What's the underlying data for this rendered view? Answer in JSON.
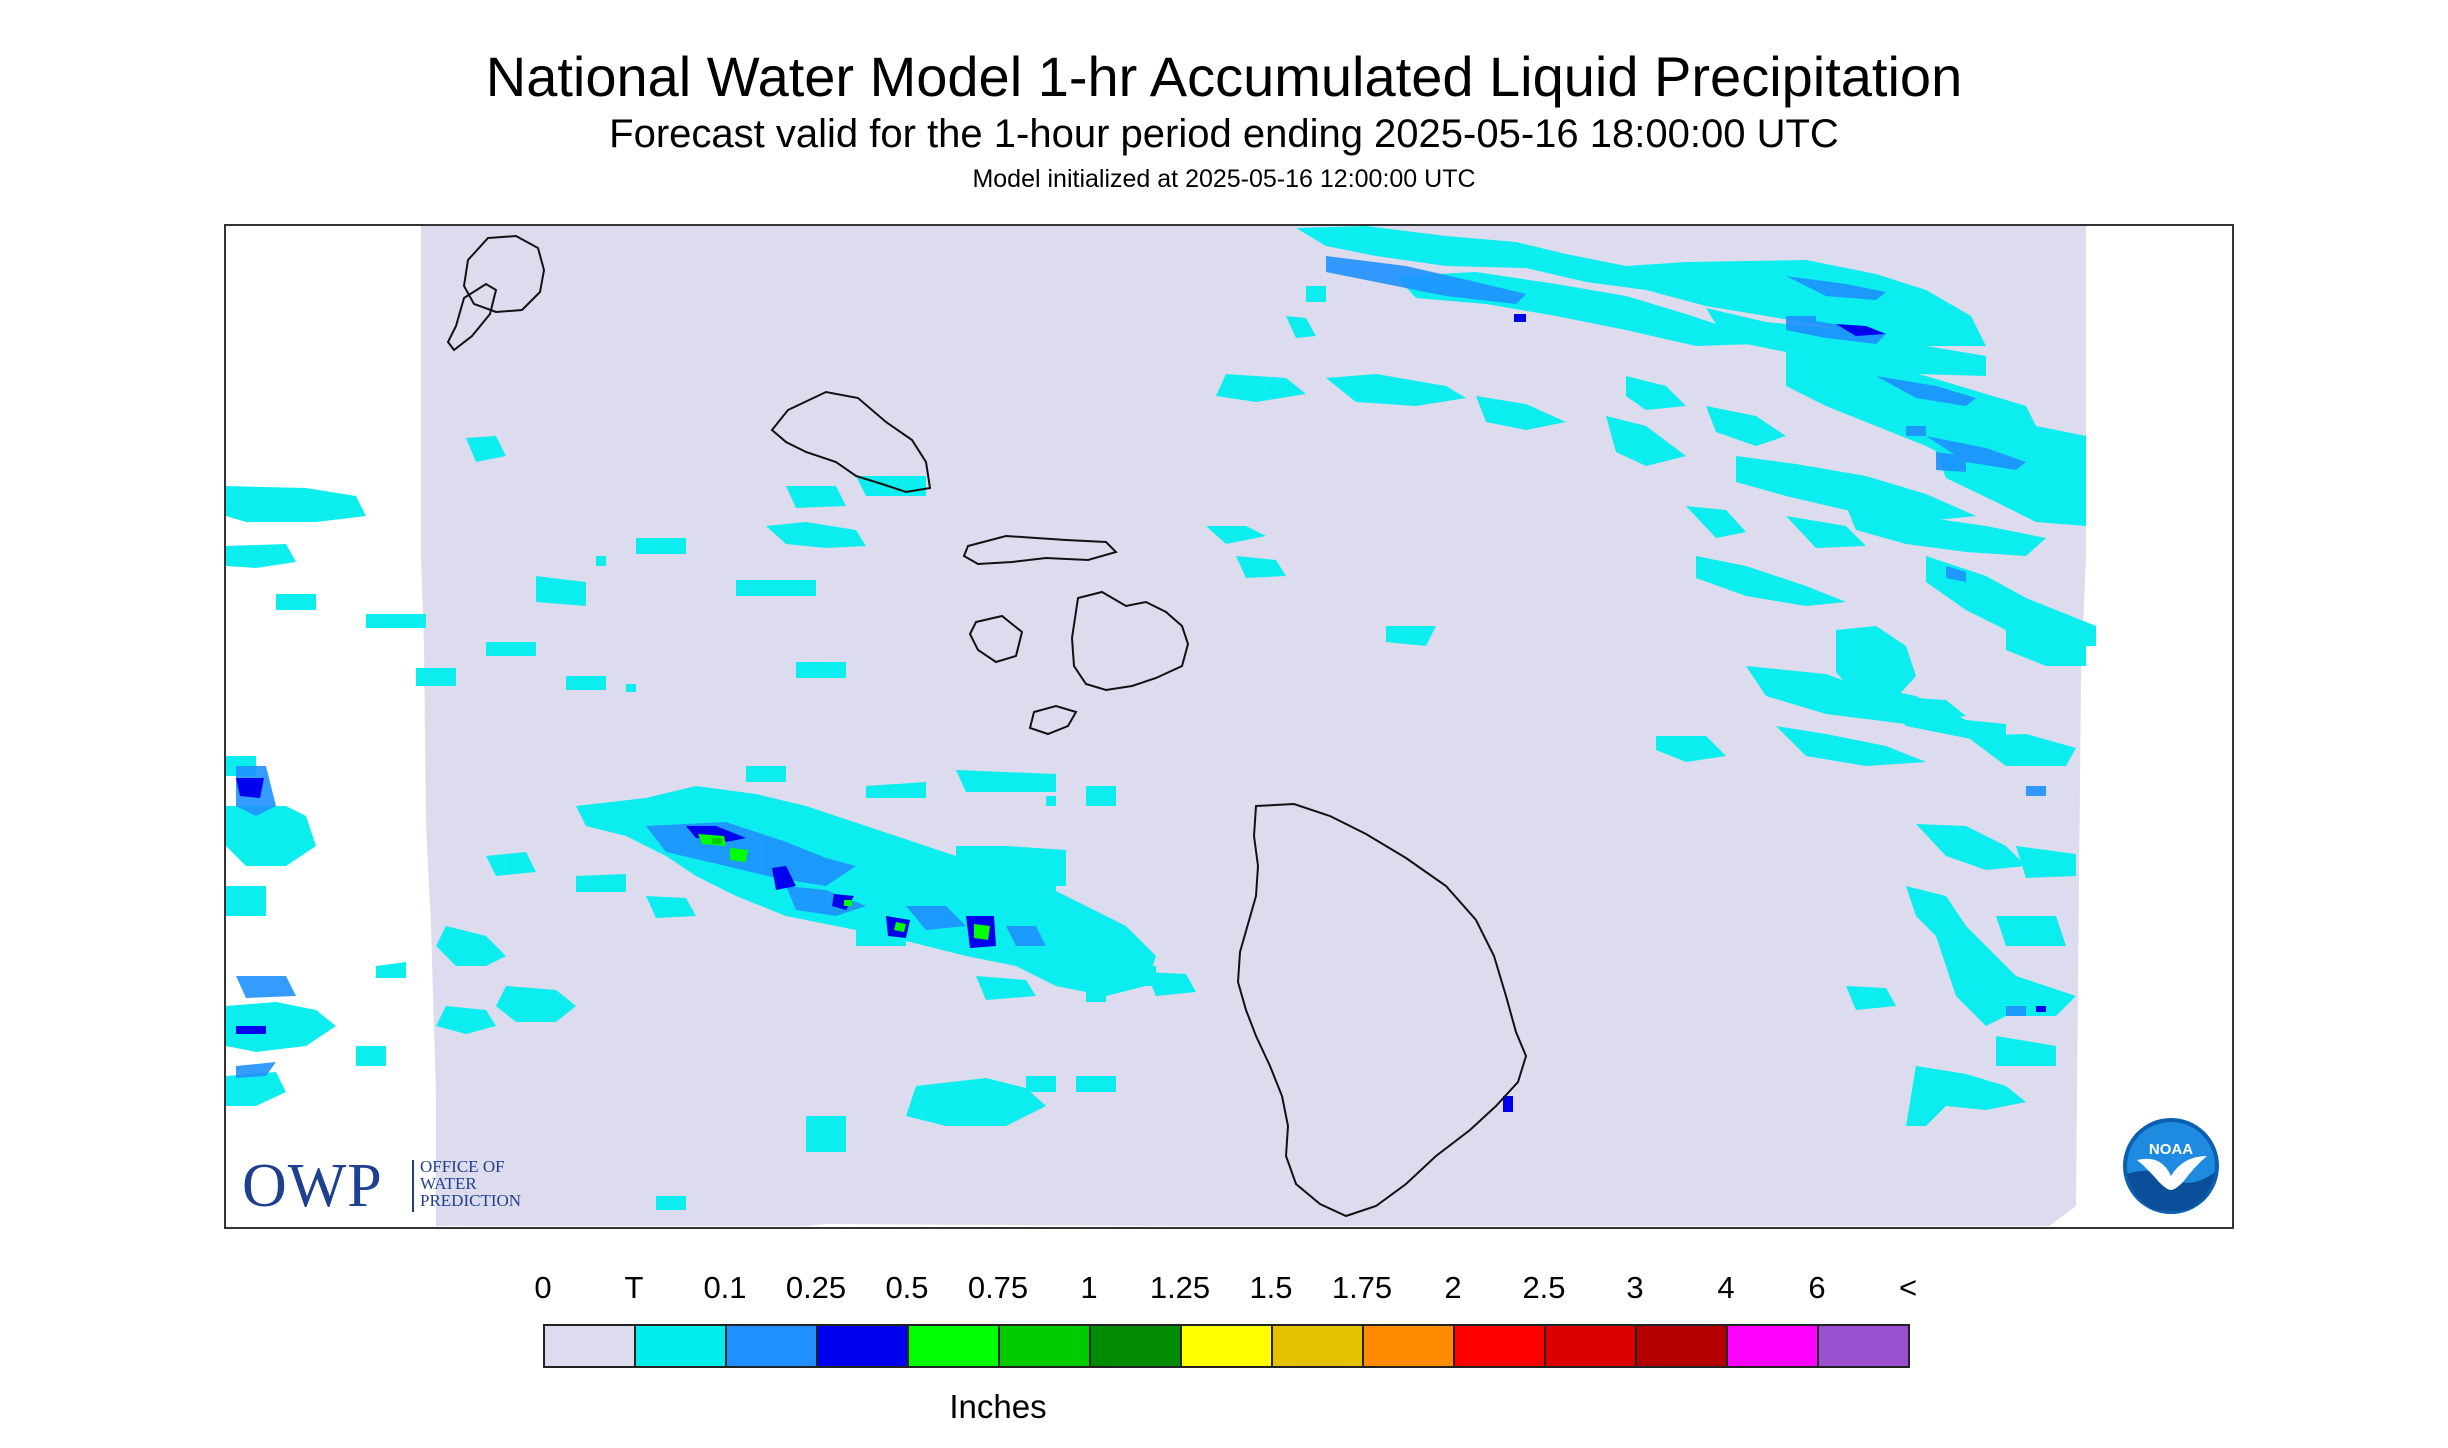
{
  "header": {
    "title": "National Water Model 1-hr Accumulated Liquid Precipitation",
    "subtitle": "Forecast valid for the 1-hour period ending 2025-05-16 18:00:00 UTC",
    "init": "Model initialized at 2025-05-16 12:00:00 UTC"
  },
  "colors": {
    "background": "#dcdcee",
    "coastline": "#111111"
  },
  "map": {
    "region": "Hawaiian Islands",
    "islands": [
      "Niihau",
      "Kauai",
      "Oahu",
      "Molokai",
      "Lanai",
      "Maui",
      "Kahoolawe",
      "Hawaii"
    ]
  },
  "logos": {
    "owp": {
      "letters": "OWP",
      "office_lines": [
        "OFFICE OF",
        "WATER",
        "PREDICTION"
      ]
    },
    "noaa": {
      "text": "NOAA"
    }
  },
  "legend": {
    "ticks": [
      "0",
      "T",
      "0.1",
      "0.25",
      "0.5",
      "0.75",
      "1",
      "1.25",
      "1.5",
      "1.75",
      "2",
      "2.5",
      "3",
      "4",
      "6",
      "<"
    ],
    "colors": [
      "#dcdcee",
      "#00eeee",
      "#1e90ff",
      "#0000ee",
      "#00ff00",
      "#00cd00",
      "#008b00",
      "#ffff00",
      "#e5c000",
      "#ff8c00",
      "#ff0000",
      "#dd0000",
      "#b50000",
      "#ff00ff",
      "#9b50d0"
    ],
    "units": "Inches"
  }
}
